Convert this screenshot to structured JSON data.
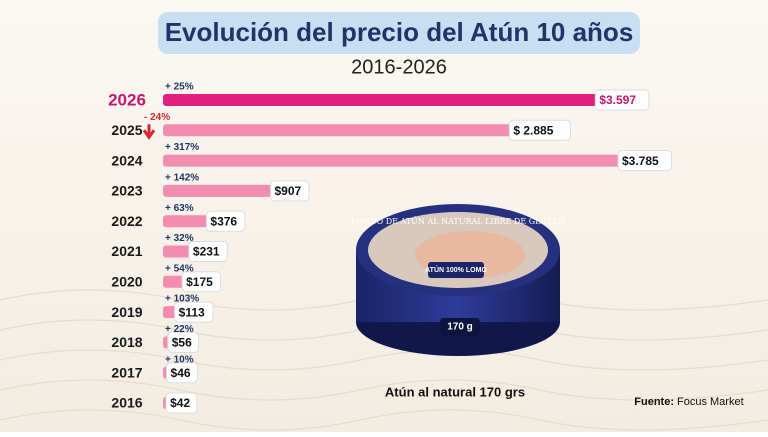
{
  "chart_data": {
    "type": "hbar",
    "title": "Evolución del precio del Atún 10 años",
    "subtitle": "2016-2026",
    "categories": [
      "2026",
      "2025",
      "2024",
      "2023",
      "2022",
      "2021",
      "2020",
      "2019",
      "2018",
      "2017",
      "2016"
    ],
    "values": [
      3597,
      2885,
      3785,
      907,
      376,
      231,
      175,
      113,
      56,
      46,
      42
    ],
    "value_labels": [
      "$3.597",
      "$ 2.885",
      "$3.785",
      "$907",
      "$376",
      "$231",
      "$175",
      "$113",
      "$56",
      "$46",
      "$42"
    ],
    "change_labels": [
      "+ 25%",
      "- 24%",
      "+ 317%",
      "+ 142%",
      "+ 63%",
      "+ 32%",
      "+ 54%",
      "+ 103%",
      "+ 22%",
      "+ 10%",
      null
    ],
    "color": "#f27aa5",
    "highlight_color": "#e0207c",
    "drop_color": "#d42a2a"
  },
  "product": {
    "can_top": "FONDO DE ATÚN AL NATURAL LIBRE DE GLUTEN",
    "can_badge": "ATÚN 100% LOMO",
    "can_weight": "170 g",
    "caption": "Atún al natural 170 grs"
  },
  "source": {
    "label": "Fuente:",
    "name": "Focus Market"
  }
}
